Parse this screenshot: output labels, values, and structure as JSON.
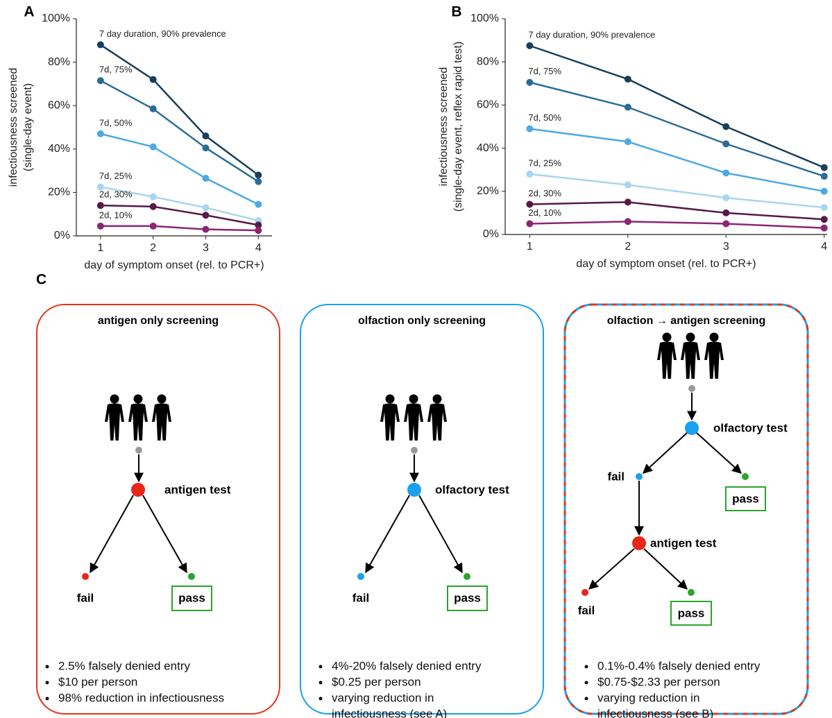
{
  "chart_data": [
    {
      "type": "line",
      "label": "A",
      "ylabel": [
        "infectiousness screened",
        "(single-day event)"
      ],
      "xlabel": "day of symptom onset (rel. to PCR+)",
      "x": [
        1,
        2,
        3,
        4
      ],
      "xlim": [
        0.54,
        4.26
      ],
      "xticks": [
        1,
        2,
        3,
        4
      ],
      "ylim": [
        0,
        100
      ],
      "yticks": [
        {
          "value": 0,
          "label": "0%"
        },
        {
          "value": 20,
          "label": "20%"
        },
        {
          "value": 40,
          "label": "40%"
        },
        {
          "value": 60,
          "label": "60%"
        },
        {
          "value": 80,
          "label": "80%"
        },
        {
          "value": 100,
          "label": "100%"
        }
      ],
      "series": [
        {
          "name": "7 day duration, 90% prevalence",
          "color": "#173f5c",
          "values": [
            88,
            72,
            46,
            28
          ]
        },
        {
          "name": "7d, 75%",
          "color": "#2b6c96",
          "values": [
            71.5,
            58.5,
            40.5,
            25
          ]
        },
        {
          "name": "7d, 50%",
          "color": "#4da9e2",
          "values": [
            47,
            41,
            26.5,
            14.5
          ]
        },
        {
          "name": "7d, 25%",
          "color": "#a8d5f1",
          "values": [
            22.5,
            18,
            13,
            7
          ]
        },
        {
          "name": "2d, 30%",
          "color": "#561a47",
          "values": [
            14,
            13.5,
            9.5,
            5
          ]
        },
        {
          "name": "2d, 10%",
          "color": "#8b2673",
          "values": [
            4.5,
            4.5,
            3,
            2.5
          ]
        }
      ]
    },
    {
      "type": "line",
      "label": "B",
      "ylabel": [
        "infectiousness screened",
        "(single-day event, reflex rapid test)"
      ],
      "xlabel": "day of symptom onset (rel. to PCR+)",
      "x": [
        1,
        2,
        3,
        4
      ],
      "xlim": [
        0.75,
        4.03
      ],
      "xticks": [
        1,
        2,
        3,
        4
      ],
      "ylim": [
        0,
        100
      ],
      "yticks": [
        {
          "value": 0,
          "label": "0%"
        },
        {
          "value": 20,
          "label": "20%"
        },
        {
          "value": 40,
          "label": "40%"
        },
        {
          "value": 60,
          "label": "60%"
        },
        {
          "value": 80,
          "label": "80%"
        },
        {
          "value": 100,
          "label": "100%"
        }
      ],
      "series": [
        {
          "name": "7 day duration, 90% prevalence",
          "color": "#173f5c",
          "values": [
            87.5,
            72,
            50,
            31
          ]
        },
        {
          "name": "7d, 75%",
          "color": "#2b6c96",
          "values": [
            70.5,
            59,
            42,
            27
          ]
        },
        {
          "name": "7d, 50%",
          "color": "#4da9e2",
          "values": [
            49,
            43,
            28.5,
            20
          ]
        },
        {
          "name": "7d, 25%",
          "color": "#a8d5f1",
          "values": [
            28,
            23,
            17,
            12.5
          ]
        },
        {
          "name": "2d, 30%",
          "color": "#561a47",
          "values": [
            14,
            15,
            10,
            7
          ]
        },
        {
          "name": "2d, 10%",
          "color": "#8b2673",
          "values": [
            5,
            6,
            5,
            3
          ]
        }
      ]
    }
  ],
  "diagram": {
    "label": "C",
    "panels": [
      {
        "title": "antigen only screening",
        "labels": [
          "antigen test",
          "fail",
          "pass"
        ],
        "bullets": [
          "2.5% falsely denied entry",
          "$10 per person",
          "98% reduction in infectiousness"
        ]
      },
      {
        "title": "olfaction only screening",
        "labels": [
          "olfactory test",
          "fail",
          "pass"
        ],
        "bullets": [
          "4%-20% falsely denied entry",
          "$0.25 per person",
          "varying reduction in",
          "infectiousness (see A)"
        ]
      },
      {
        "title": "olfaction → antigen screening",
        "labels": [
          "olfactory test",
          "fail",
          "pass",
          "antigen test",
          "fail",
          "pass"
        ],
        "bullets": [
          "0.1%-0.4% falsely denied entry",
          "$0.75-$2.33 per person",
          "varying reduction in",
          "infectiousness (see B)"
        ]
      }
    ]
  }
}
